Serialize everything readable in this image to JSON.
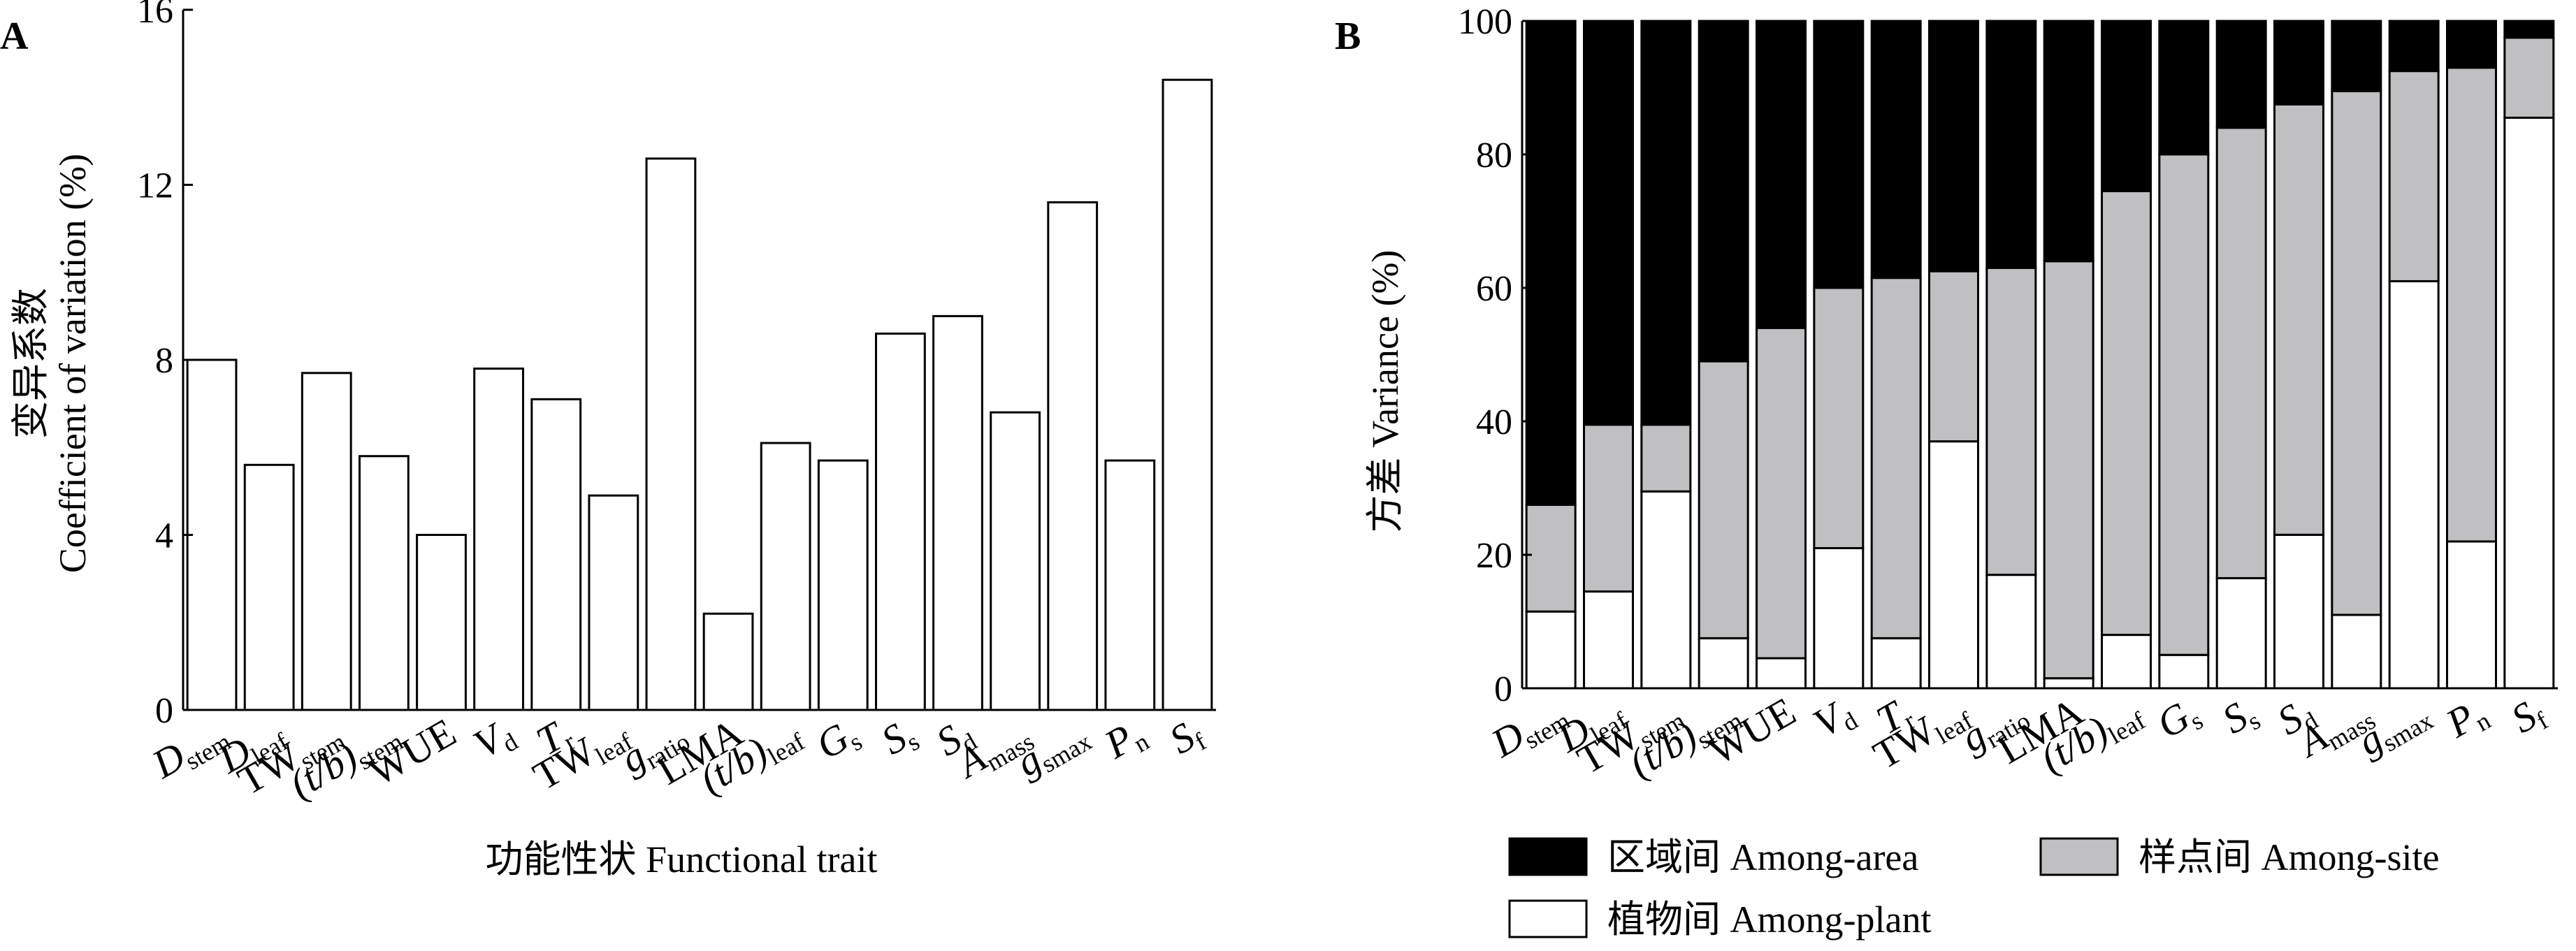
{
  "categories": [
    {
      "base": "D",
      "sub": "stem",
      "italic": true
    },
    {
      "base": "D",
      "sub": "leaf",
      "italic": true
    },
    {
      "base": "TW",
      "sub": "stem",
      "italic": false
    },
    {
      "base": "(t/b)",
      "sub": "stem",
      "italic": true
    },
    {
      "base": "WUE",
      "sub": "",
      "italic": false
    },
    {
      "base": "V",
      "sub": "d",
      "italic": true
    },
    {
      "base": "T",
      "sub": "r",
      "italic": true
    },
    {
      "base": "TW",
      "sub": "leaf",
      "italic": false
    },
    {
      "base": "g",
      "sub": "ratio",
      "italic": true
    },
    {
      "base": "LMA",
      "sub": "",
      "italic": false
    },
    {
      "base": "(t/b)",
      "sub": "leaf",
      "italic": true
    },
    {
      "base": "G",
      "sub": "s",
      "italic": true
    },
    {
      "base": "S",
      "sub": "s",
      "italic": true
    },
    {
      "base": "S",
      "sub": "d",
      "italic": true
    },
    {
      "base": "A",
      "sub": "mass",
      "italic": true
    },
    {
      "base": "g",
      "sub": "smax",
      "italic": true
    },
    {
      "base": "P",
      "sub": "n",
      "italic": true
    },
    {
      "base": "S",
      "sub": "f",
      "italic": true
    }
  ],
  "chart_data": [
    {
      "panel": "A",
      "type": "bar",
      "xlabel": "功能性状 Functional trait",
      "ylabel_cn": "变异系数",
      "ylabel_en": "Coefficient of variation (%)",
      "ylim": [
        0,
        16
      ],
      "yticks": [
        "0",
        "4",
        "8",
        "12",
        "16"
      ],
      "values": [
        8.0,
        5.6,
        7.7,
        5.8,
        4.0,
        7.8,
        7.1,
        4.9,
        12.6,
        2.2,
        6.1,
        5.7,
        8.6,
        9.0,
        6.8,
        11.6,
        5.7,
        14.4
      ]
    },
    {
      "panel": "B",
      "type": "bar",
      "stacked": true,
      "ylabel": "方差 Variance (%)",
      "ylim": [
        0,
        100
      ],
      "yticks": [
        "0",
        "20",
        "40",
        "60",
        "80",
        "100"
      ],
      "series": [
        {
          "name": "植物间 Among-plant",
          "color": "#ffffff",
          "values": [
            11.5,
            14.5,
            29.5,
            7.5,
            4.5,
            21.0,
            7.5,
            37.0,
            17.0,
            1.5,
            8.0,
            5.0,
            16.5,
            23.0,
            11.0,
            61.0,
            22.0,
            85.5
          ]
        },
        {
          "name": "样点间 Among-site",
          "color": "#c0bfc1",
          "values": [
            16.0,
            25.0,
            10.0,
            41.5,
            49.5,
            39.0,
            54.0,
            25.5,
            46.0,
            62.5,
            66.5,
            75.0,
            67.5,
            64.5,
            78.5,
            31.5,
            71.0,
            12.0
          ]
        },
        {
          "name": "区域间 Among-area",
          "color": "#000000",
          "values": [
            72.5,
            60.5,
            60.5,
            51.0,
            46.0,
            40.0,
            38.5,
            37.5,
            37.0,
            36.0,
            25.5,
            20.0,
            16.0,
            12.5,
            10.5,
            7.5,
            7.0,
            2.5
          ]
        }
      ]
    }
  ]
}
